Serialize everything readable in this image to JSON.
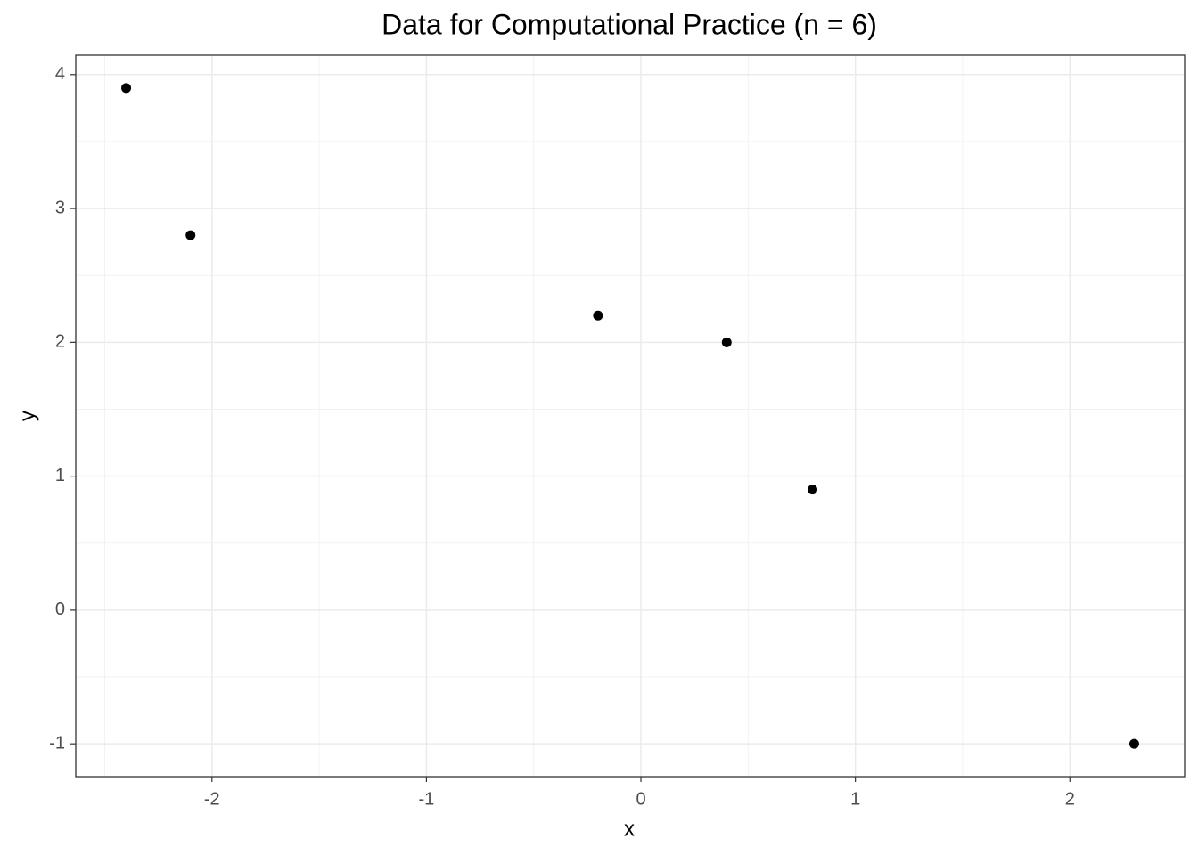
{
  "chart_data": {
    "type": "scatter",
    "title": "Data for Computational Practice (n = 6)",
    "x_label": "x",
    "y_label": "y",
    "x": [
      -2.4,
      -2.1,
      -0.2,
      0.4,
      0.8,
      2.3
    ],
    "values": [
      3.9,
      2.8,
      2.2,
      2.0,
      0.9,
      -1
    ],
    "color": "#000000",
    "xlim": [
      -2.635,
      2.535
    ],
    "ylim": [
      -1.245,
      4.145
    ],
    "xticks": [
      -2,
      -1,
      0,
      1,
      2
    ],
    "yticks": [
      -1,
      0,
      1,
      2,
      3,
      4
    ],
    "grid": true
  }
}
